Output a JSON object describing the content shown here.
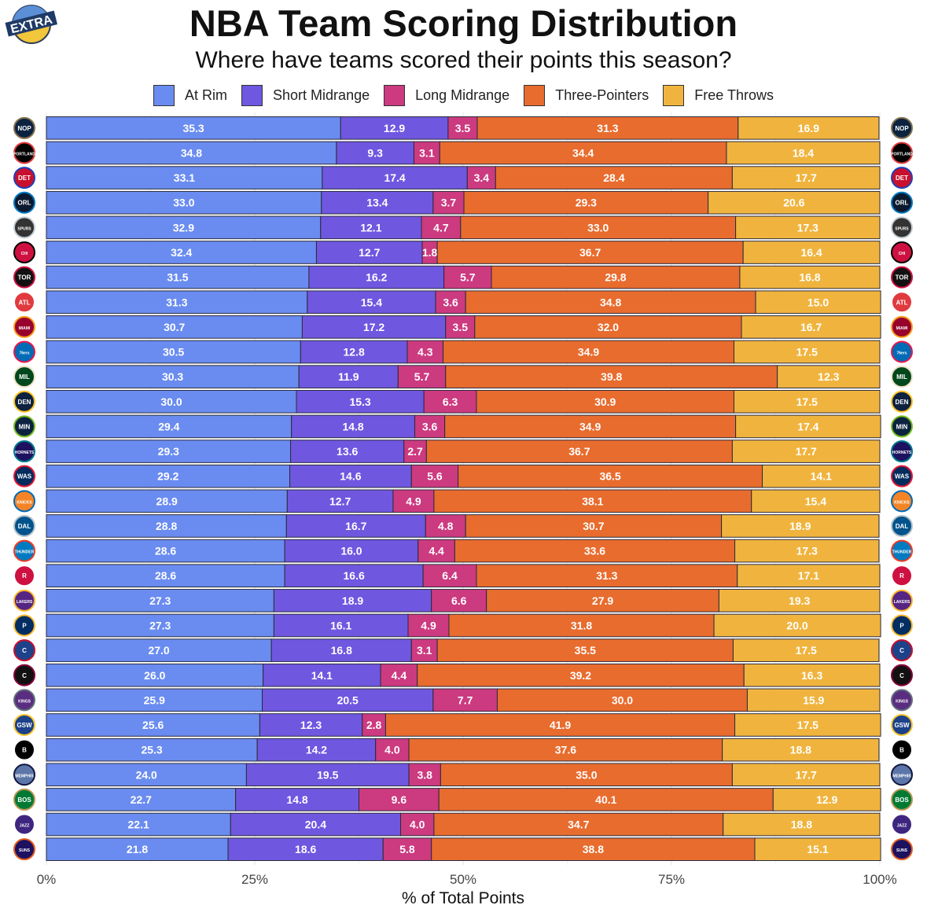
{
  "badge": {
    "text": "EXTRA"
  },
  "chart_data": {
    "type": "bar",
    "orientation": "horizontal",
    "stacked": true,
    "title": "NBA Team Scoring Distribution",
    "subtitle": "Where have teams scored their points this season?",
    "xlabel": "% of Total Points",
    "ylabel": "",
    "xlim": [
      0,
      100
    ],
    "xticks": [
      0,
      25,
      50,
      75,
      100
    ],
    "xtick_labels": [
      "0%",
      "25%",
      "50%",
      "75%",
      "100%"
    ],
    "grid": true,
    "legend_position": "top",
    "categories": [
      "New Orleans Pelicans",
      "Portland Trail Blazers",
      "Detroit Pistons",
      "Orlando Magic",
      "San Antonio Spurs",
      "Chicago Bulls",
      "Toronto Raptors",
      "Atlanta Hawks",
      "Miami Heat",
      "Philadelphia 76ers",
      "Milwaukee Bucks",
      "Denver Nuggets",
      "Minnesota Timberwolves",
      "Charlotte Hornets",
      "Washington Wizards",
      "New York Knicks",
      "Dallas Mavericks",
      "Oklahoma City Thunder",
      "Houston Rockets",
      "Los Angeles Lakers",
      "Indiana Pacers",
      "LA Clippers",
      "Cleveland Cavaliers",
      "Sacramento Kings",
      "Golden State Warriors",
      "Brooklyn Nets",
      "Memphis Grizzlies",
      "Boston Celtics",
      "Utah Jazz",
      "Phoenix Suns"
    ],
    "series": [
      {
        "name": "At Rim",
        "color": "#6a8cf0",
        "values": [
          35.3,
          34.8,
          33.1,
          33.0,
          32.9,
          32.4,
          31.5,
          31.3,
          30.7,
          30.5,
          30.3,
          30.0,
          29.4,
          29.3,
          29.2,
          28.9,
          28.8,
          28.6,
          28.6,
          27.3,
          27.3,
          27.0,
          26.0,
          25.9,
          25.6,
          25.3,
          24.0,
          22.7,
          22.1,
          21.8
        ]
      },
      {
        "name": "Short Midrange",
        "color": "#6f57e0",
        "values": [
          12.9,
          9.3,
          17.4,
          13.4,
          12.1,
          12.7,
          16.2,
          15.4,
          17.2,
          12.8,
          11.9,
          15.3,
          14.8,
          13.6,
          14.6,
          12.7,
          16.7,
          16.0,
          16.6,
          18.9,
          16.1,
          16.8,
          14.1,
          20.5,
          12.3,
          14.2,
          19.5,
          14.8,
          20.4,
          18.6
        ]
      },
      {
        "name": "Long Midrange",
        "color": "#cc3a80",
        "values": [
          3.5,
          3.1,
          3.4,
          3.7,
          4.7,
          1.8,
          5.7,
          3.6,
          3.5,
          4.3,
          5.7,
          6.3,
          3.6,
          2.7,
          5.6,
          4.9,
          4.8,
          4.4,
          6.4,
          6.6,
          4.9,
          3.1,
          4.4,
          7.7,
          2.8,
          4.0,
          3.8,
          9.6,
          4.0,
          5.8
        ]
      },
      {
        "name": "Three-Pointers",
        "color": "#e86c2e",
        "values": [
          31.3,
          34.4,
          28.4,
          29.3,
          33.0,
          36.7,
          29.8,
          34.8,
          32.0,
          34.9,
          39.8,
          30.9,
          34.9,
          36.7,
          36.5,
          38.1,
          30.7,
          33.6,
          31.3,
          27.9,
          31.8,
          35.5,
          39.2,
          30.0,
          41.9,
          37.6,
          35.0,
          40.1,
          34.7,
          38.8
        ]
      },
      {
        "name": "Free Throws",
        "color": "#f0b43e",
        "values": [
          16.9,
          18.4,
          17.7,
          20.6,
          17.3,
          16.4,
          16.8,
          15.0,
          16.7,
          17.5,
          12.3,
          17.5,
          17.4,
          17.7,
          14.1,
          15.4,
          18.9,
          17.3,
          17.1,
          19.3,
          20.0,
          17.5,
          16.3,
          15.9,
          17.5,
          18.8,
          17.7,
          12.9,
          18.8,
          15.1
        ]
      }
    ]
  },
  "team_logos": [
    {
      "abbr": "NOP",
      "text": "NOP",
      "color": "#0c2340",
      "accent": "#85714d"
    },
    {
      "abbr": "POR",
      "text": "PORTLAND",
      "color": "#000000",
      "accent": "#e03a3e"
    },
    {
      "abbr": "DET",
      "text": "DET",
      "color": "#c8102e",
      "accent": "#1d42ba"
    },
    {
      "abbr": "ORL",
      "text": "ORL",
      "color": "#0b1a2f",
      "accent": "#0077c0"
    },
    {
      "abbr": "SAS",
      "text": "SPURS",
      "color": "#333333",
      "accent": "#c4ced4"
    },
    {
      "abbr": "CHI",
      "text": "CHICAGO BULLS",
      "color": "#ce1141",
      "accent": "#000000"
    },
    {
      "abbr": "TOR",
      "text": "TOR",
      "color": "#111111",
      "accent": "#ce1141"
    },
    {
      "abbr": "ATL",
      "text": "ATL",
      "color": "#e03a3e",
      "accent": "#ffffff"
    },
    {
      "abbr": "MIA",
      "text": "MIAMI",
      "color": "#98002e",
      "accent": "#f9a01b"
    },
    {
      "abbr": "PHI",
      "text": "76ers",
      "color": "#006bb6",
      "accent": "#ed174c"
    },
    {
      "abbr": "MIL",
      "text": "MIL",
      "color": "#00471b",
      "accent": "#eee1c6"
    },
    {
      "abbr": "DEN",
      "text": "DEN",
      "color": "#0e2240",
      "accent": "#fec524"
    },
    {
      "abbr": "MIN",
      "text": "MIN",
      "color": "#0c2340",
      "accent": "#78be20"
    },
    {
      "abbr": "CHA",
      "text": "HORNETS",
      "color": "#1d1160",
      "accent": "#00788c"
    },
    {
      "abbr": "WAS",
      "text": "WAS",
      "color": "#002b5c",
      "accent": "#e31837"
    },
    {
      "abbr": "NYK",
      "text": "KNICKS",
      "color": "#f58426",
      "accent": "#006bb6"
    },
    {
      "abbr": "DAL",
      "text": "DAL",
      "color": "#00538c",
      "accent": "#b8c4ca"
    },
    {
      "abbr": "OKC",
      "text": "THUNDER",
      "color": "#007ac1",
      "accent": "#ef3b24"
    },
    {
      "abbr": "HOU",
      "text": "R",
      "color": "#ce1141",
      "accent": "#ffffff"
    },
    {
      "abbr": "LAL",
      "text": "LAKERS",
      "color": "#552583",
      "accent": "#fdb927"
    },
    {
      "abbr": "IND",
      "text": "P",
      "color": "#002d62",
      "accent": "#fdbb30"
    },
    {
      "abbr": "LAC",
      "text": "C",
      "color": "#1d428a",
      "accent": "#c8102e"
    },
    {
      "abbr": "CLE",
      "text": "C",
      "color": "#111111",
      "accent": "#860038"
    },
    {
      "abbr": "SAC",
      "text": "KINGS",
      "color": "#5a2d81",
      "accent": "#63727a"
    },
    {
      "abbr": "GSW",
      "text": "GSW",
      "color": "#1d428a",
      "accent": "#ffc72c"
    },
    {
      "abbr": "BKN",
      "text": "B",
      "color": "#000000",
      "accent": "#ffffff"
    },
    {
      "abbr": "MEM",
      "text": "MEMPHIS",
      "color": "#5d76a9",
      "accent": "#12173f"
    },
    {
      "abbr": "BOS",
      "text": "BOS",
      "color": "#007a33",
      "accent": "#ba9653"
    },
    {
      "abbr": "UTA",
      "text": "JAZZ",
      "color": "#3e2680",
      "accent": "#ffffff"
    },
    {
      "abbr": "PHX",
      "text": "SUNS",
      "color": "#1d1160",
      "accent": "#e56020"
    }
  ]
}
